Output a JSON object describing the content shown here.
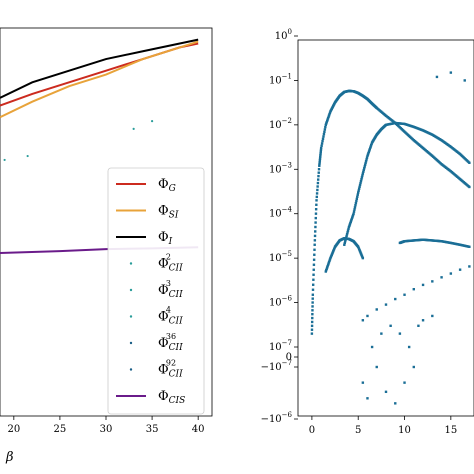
{
  "chart_data": [
    {
      "type": "line",
      "panel": "left",
      "xlabel": "β",
      "xlim": [
        18.5,
        41.5
      ],
      "ylim": [
        0,
        1
      ],
      "x_ticks": [
        20,
        25,
        30,
        35,
        40
      ],
      "x_tick_labels": [
        "20",
        "25",
        "30",
        "35",
        "40"
      ],
      "legend_position": "lower-right",
      "series": [
        {
          "name": "G",
          "color": "#cc2b1f",
          "marker": "line",
          "x": [
            18.5,
            22,
            26,
            30,
            34,
            38,
            40
          ],
          "y": [
            0.8,
            0.83,
            0.86,
            0.89,
            0.92,
            0.95,
            0.96
          ]
        },
        {
          "name": "SI",
          "color": "#e8a33a",
          "marker": "line",
          "x": [
            18.5,
            22,
            26,
            30,
            34,
            38,
            40
          ],
          "y": [
            0.77,
            0.81,
            0.85,
            0.88,
            0.92,
            0.95,
            0.965
          ]
        },
        {
          "name": "I",
          "color": "#000000",
          "marker": "line",
          "x": [
            18.5,
            22,
            26,
            30,
            34,
            38,
            40
          ],
          "y": [
            0.82,
            0.86,
            0.89,
            0.92,
            0.94,
            0.96,
            0.97
          ]
        },
        {
          "name": "CII",
          "sup": "2",
          "color": "#2a9d9a",
          "marker": "dot",
          "x": [
            19,
            21.5,
            33,
            35
          ],
          "y": [
            0.66,
            0.67,
            0.74,
            0.76
          ]
        },
        {
          "name": "CII",
          "sup": "3",
          "color": "#2a9d9a",
          "marker": "dot",
          "x": [],
          "y": []
        },
        {
          "name": "CII",
          "sup": "4",
          "color": "#2a9d9a",
          "marker": "dot",
          "x": [],
          "y": []
        },
        {
          "name": "CII",
          "sup": "36",
          "color": "#1a5f87",
          "marker": "dot",
          "x": [],
          "y": []
        },
        {
          "name": "CII",
          "sup": "92",
          "color": "#1a5f87",
          "marker": "dot",
          "x": [],
          "y": []
        },
        {
          "name": "CIS",
          "color": "#6a1b8a",
          "marker": "line",
          "x": [
            18.5,
            25,
            30,
            35,
            40
          ],
          "y": [
            0.42,
            0.425,
            0.43,
            0.432,
            0.435
          ]
        }
      ]
    },
    {
      "type": "scatter",
      "panel": "right",
      "scale": "symlog",
      "xlim": [
        -1.5,
        17.5
      ],
      "x_ticks": [
        0,
        5,
        10,
        15
      ],
      "x_tick_labels": [
        "0",
        "5",
        "10",
        "15"
      ],
      "y_ticks": [
        {
          "base": "10",
          "exp": "0",
          "value": 1
        },
        {
          "base": "10",
          "exp": "−1",
          "value": 0.1
        },
        {
          "base": "10",
          "exp": "−2",
          "value": 0.01
        },
        {
          "base": "10",
          "exp": "−3",
          "value": 0.001
        },
        {
          "base": "10",
          "exp": "−4",
          "value": 0.0001
        },
        {
          "base": "10",
          "exp": "−5",
          "value": 1e-05
        },
        {
          "base": "10",
          "exp": "−6",
          "value": 1e-06
        },
        {
          "base": "10",
          "exp": "−7",
          "value": 1e-07
        },
        {
          "base": "",
          "exp": "",
          "label": "0",
          "value": 0
        },
        {
          "base": "−10",
          "exp": "−7",
          "value": -1e-07
        },
        {
          "base": "−10",
          "exp": "−6",
          "value": -1e-06
        }
      ],
      "color": "#1a6e96",
      "series": [
        {
          "name": "",
          "x": [
            0.0,
            0.1,
            0.3,
            0.5,
            0.8,
            1.0,
            1.5,
            2.0,
            2.5,
            3.0,
            3.5,
            4.0,
            4.5,
            5.0,
            5.5,
            6.0,
            6.5,
            7.0,
            8.0,
            9.0,
            10.0,
            11.0,
            12.0,
            13.0,
            14.0,
            15.0,
            16.0,
            17.0
          ],
          "y": [
            2e-07,
            1.5e-06,
            2e-05,
            0.0002,
            0.0012,
            0.003,
            0.01,
            0.02,
            0.032,
            0.045,
            0.055,
            0.058,
            0.057,
            0.052,
            0.045,
            0.038,
            0.03,
            0.024,
            0.016,
            0.011,
            0.007,
            0.0045,
            0.003,
            0.002,
            0.0013,
            0.0009,
            0.0006,
            0.0004
          ]
        },
        {
          "name": "",
          "x": [
            3.5,
            4.0,
            4.5,
            5.0,
            5.5,
            6.0,
            6.5,
            7.0,
            7.5,
            8.0,
            9.0,
            10.0,
            11.0,
            12.0,
            13.0,
            14.0,
            15.0,
            16.0,
            17.0
          ],
          "y": [
            2e-05,
            5e-05,
            0.0001,
            0.0003,
            0.0008,
            0.002,
            0.004,
            0.006,
            0.008,
            0.01,
            0.011,
            0.0105,
            0.009,
            0.0075,
            0.006,
            0.0045,
            0.0032,
            0.0022,
            0.0014
          ]
        },
        {
          "name": "",
          "x": [
            1.5,
            2.0,
            2.5,
            3.0,
            3.5,
            4.0,
            4.5,
            5.0,
            5.5
          ],
          "y": [
            5e-06,
            1e-05,
            1.8e-05,
            2.5e-05,
            2.8e-05,
            2.7e-05,
            2.4e-05,
            1.8e-05,
            1e-05
          ]
        },
        {
          "name": "",
          "x": [
            9.5,
            10.0,
            11.0,
            12.0,
            13.0,
            14.0,
            15.0,
            16.0,
            17.0
          ],
          "y": [
            2.2e-05,
            2.4e-05,
            2.5e-05,
            2.6e-05,
            2.5e-05,
            2.4e-05,
            2.2e-05,
            2e-05,
            1.8e-05
          ]
        },
        {
          "name": "",
          "x": [
            5.5,
            6.0,
            7.0,
            8.0,
            9.0,
            10.0,
            11.0,
            12.0,
            13.0,
            14.0,
            15.0,
            16.0,
            17.0
          ],
          "y": [
            4e-07,
            5e-07,
            7e-07,
            9e-07,
            1.2e-06,
            1.5e-06,
            2e-06,
            2.5e-06,
            3e-06,
            3.7e-06,
            4.5e-06,
            5.5e-06,
            6.5e-06
          ]
        },
        {
          "name": "",
          "x": [
            5.5,
            6.0,
            6.5,
            7.0,
            7.5,
            8.0,
            8.5,
            9.0,
            9.5,
            10.0,
            10.5,
            11.0,
            11.5,
            12.0,
            13.0
          ],
          "y": [
            -2e-07,
            -4e-07,
            1e-07,
            -1e-07,
            2e-07,
            -3e-07,
            3e-07,
            -5e-07,
            2e-07,
            -2e-07,
            1e-07,
            -1e-07,
            3e-07,
            4e-07,
            5e-07
          ]
        },
        {
          "name": "",
          "x": [
            13.5,
            15.0,
            16.5
          ],
          "y": [
            0.12,
            0.15,
            0.1
          ]
        }
      ]
    }
  ]
}
